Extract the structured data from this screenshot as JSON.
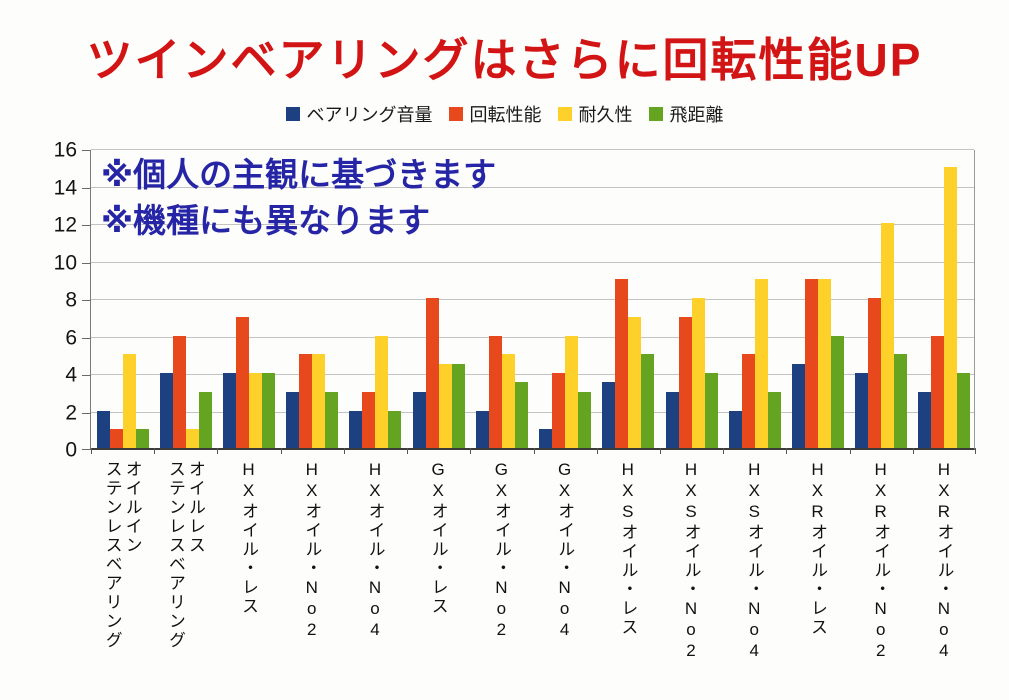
{
  "title": "ツインベアリングはさらに回転性能UP",
  "annotation": {
    "line1": "※個人の主観に基づきます",
    "line2": "※機種にも異なります"
  },
  "colors": {
    "title": "#d21414",
    "annotation": "#2525a5",
    "gridline": "#c3c3c3",
    "axis": "#555555"
  },
  "chart_data": {
    "type": "bar",
    "title": "ツインベアリングはさらに回転性能UP",
    "categories": [
      "オイルイン\nステンレスベアリング",
      "オイルレス\nステンレスベアリング",
      "HXオイル・レス",
      "HXオイル・No2",
      "HXオイル・No4",
      "GXオイル・レス",
      "GXオイル・No2",
      "GXオイル・No4",
      "HXSオイル・レス",
      "HXSオイル・No2",
      "HXSオイル・No4",
      "HXRオイル・レス",
      "HXRオイル・No2",
      "HXRオイル・No4"
    ],
    "series": [
      {
        "name": "ベアリング音量",
        "color": "#1c4080",
        "values": [
          2,
          4,
          4,
          3,
          2,
          3,
          2,
          1,
          3.5,
          3,
          2,
          4.5,
          4,
          3
        ]
      },
      {
        "name": "回転性能",
        "color": "#e8491c",
        "values": [
          1,
          6,
          7,
          5,
          3,
          8,
          6,
          4,
          9,
          7,
          5,
          9,
          8,
          6
        ]
      },
      {
        "name": "耐久性",
        "color": "#fdd02a",
        "values": [
          5,
          1,
          4,
          5,
          6,
          4.5,
          5,
          6,
          7,
          8,
          9,
          9,
          12,
          15
        ]
      },
      {
        "name": "飛距離",
        "color": "#64a421",
        "values": [
          1,
          3,
          4,
          3,
          2,
          4.5,
          3.5,
          3,
          5,
          4,
          3,
          6,
          5,
          4
        ]
      }
    ],
    "ylim": [
      0,
      16
    ],
    "ytick_step": 2,
    "ytick_labels": [
      "0",
      "2",
      "4",
      "6",
      "8",
      "10",
      "12",
      "14",
      "16"
    ],
    "grid": true,
    "legend_position": "top"
  }
}
